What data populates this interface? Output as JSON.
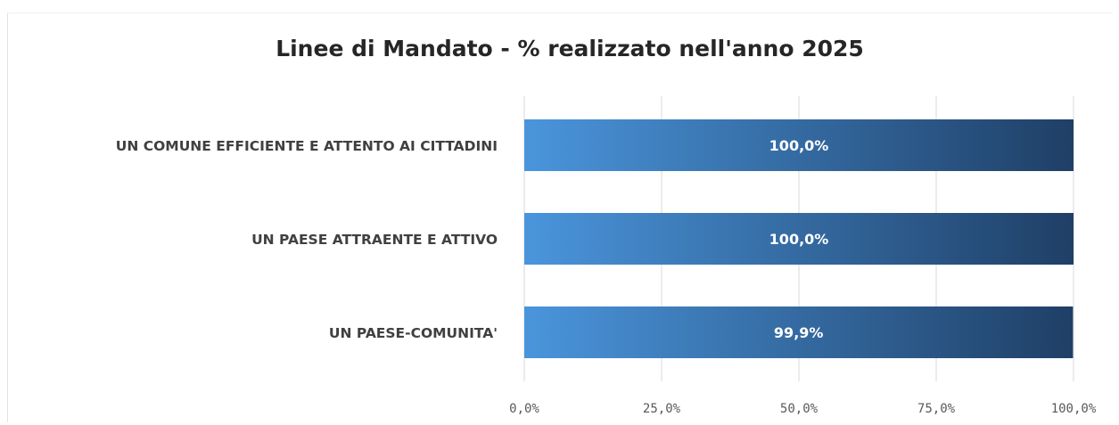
{
  "chart_data": {
    "type": "bar",
    "orientation": "horizontal",
    "title": "Linee di Mandato - % realizzato nell'anno 2025",
    "categories": [
      "UN COMUNE EFFICIENTE E ATTENTO AI CITTADINI",
      "UN PAESE ATTRAENTE E ATTIVO",
      "UN PAESE-COMUNITA'"
    ],
    "values": [
      100.0,
      100.0,
      99.9
    ],
    "value_labels": [
      "100,0%",
      "100,0%",
      "99,9%"
    ],
    "xlim": [
      0,
      100
    ],
    "xticks": [
      0,
      25,
      50,
      75,
      100
    ],
    "xtick_labels": [
      "0,0%",
      "25,0%",
      "50,0%",
      "75,0%",
      "100,0%"
    ],
    "grid": "vertical",
    "legend": "none",
    "colors": {
      "bar_start": "#4a95dc",
      "bar_end": "#1f3f66",
      "grid": "#d9d9d9"
    }
  }
}
